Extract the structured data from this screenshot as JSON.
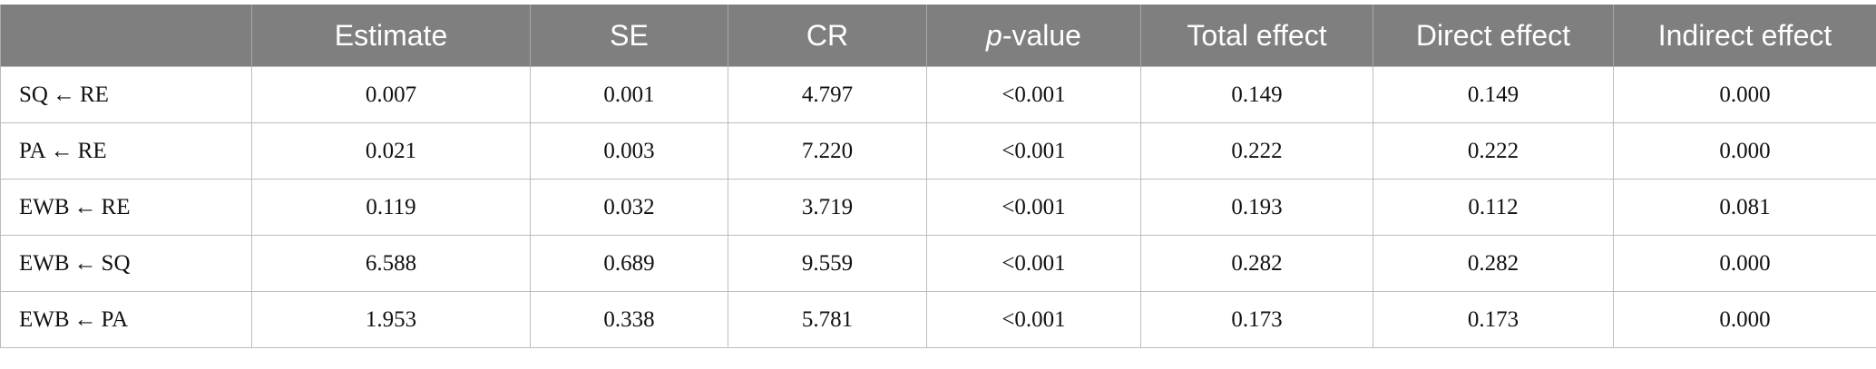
{
  "table": {
    "header": [
      "Estimate",
      "SE",
      "CR",
      [
        "p",
        "-value"
      ],
      "Total effect",
      "Direct effect",
      "Indirect effect"
    ],
    "rows": [
      [
        "SQ ← RE",
        "0.007",
        "0.001",
        "4.797",
        "<0.001",
        "0.149",
        "0.149",
        "0.000"
      ],
      [
        "PA ← RE",
        "0.021",
        "0.003",
        "7.220",
        "<0.001",
        "0.222",
        "0.222",
        "0.000"
      ],
      [
        "EWB ← RE",
        "0.119",
        "0.032",
        "3.719",
        "<0.001",
        "0.193",
        "0.112",
        "0.081"
      ],
      [
        "EWB ← SQ",
        "6.588",
        "0.689",
        "9.559",
        "<0.001",
        "0.282",
        "0.282",
        "0.000"
      ],
      [
        "EWB ← PA",
        "1.953",
        "0.338",
        "5.781",
        "<0.001",
        "0.173",
        "0.173",
        "0.000"
      ]
    ]
  }
}
